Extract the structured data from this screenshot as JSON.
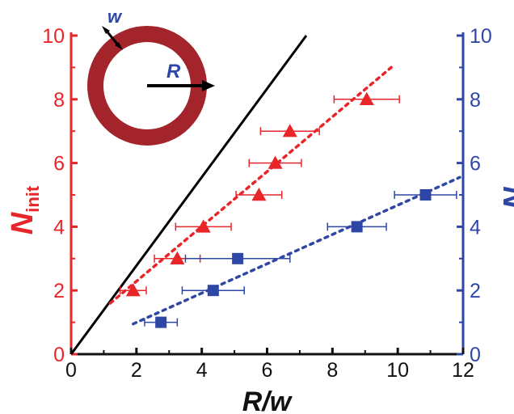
{
  "colors": {
    "left_axis": "#e8262a",
    "right_axis": "#2e47a6",
    "ring": "#a3242a",
    "reference_line": "#000000"
  },
  "inset": {
    "width_label": "w",
    "radius_label": "R"
  },
  "chart_data": {
    "type": "scatter",
    "xlabel": "R/w",
    "ylabel_left": {
      "symbol": "N",
      "subscript": "init"
    },
    "ylabel_right": "N",
    "xlim": [
      0,
      12
    ],
    "ylim_left": [
      0,
      10
    ],
    "ylim_right": [
      0,
      10
    ],
    "xticks": [
      0,
      2,
      4,
      6,
      8,
      10,
      12
    ],
    "yticks_left": [
      0,
      2,
      4,
      6,
      8,
      10
    ],
    "yticks_right": [
      0,
      2,
      4,
      6,
      8,
      10
    ],
    "reference_line": {
      "from": [
        0,
        0
      ],
      "to": [
        7.2,
        10
      ],
      "color": "#000000"
    },
    "series": [
      {
        "axis": "left",
        "marker": "triangle",
        "color": "#e8262a",
        "points": [
          {
            "x": 1.9,
            "y": 2,
            "xerr": 0.4
          },
          {
            "x": 3.25,
            "y": 3,
            "xerr": 0.7
          },
          {
            "x": 4.05,
            "y": 4,
            "xerr": 0.85
          },
          {
            "x": 5.75,
            "y": 5,
            "xerr": 0.7
          },
          {
            "x": 6.25,
            "y": 6,
            "xerr": 0.8
          },
          {
            "x": 6.7,
            "y": 7,
            "xerr": 0.9
          },
          {
            "x": 9.05,
            "y": 8,
            "xerr": 1.0
          }
        ],
        "fit": {
          "from": [
            1.2,
            1.6
          ],
          "to": [
            9.8,
            9.0
          ]
        }
      },
      {
        "axis": "right",
        "marker": "square",
        "color": "#2e47a6",
        "points": [
          {
            "x": 2.75,
            "y": 1,
            "xerr": 0.5
          },
          {
            "x": 4.35,
            "y": 2,
            "xerr": 0.95
          },
          {
            "x": 5.1,
            "y": 3,
            "xerr": 1.6
          },
          {
            "x": 8.75,
            "y": 4,
            "xerr": 0.9
          },
          {
            "x": 10.85,
            "y": 5,
            "xerr": 0.95
          }
        ],
        "fit": {
          "from": [
            1.9,
            0.95
          ],
          "to": [
            11.9,
            5.55
          ]
        }
      }
    ]
  }
}
